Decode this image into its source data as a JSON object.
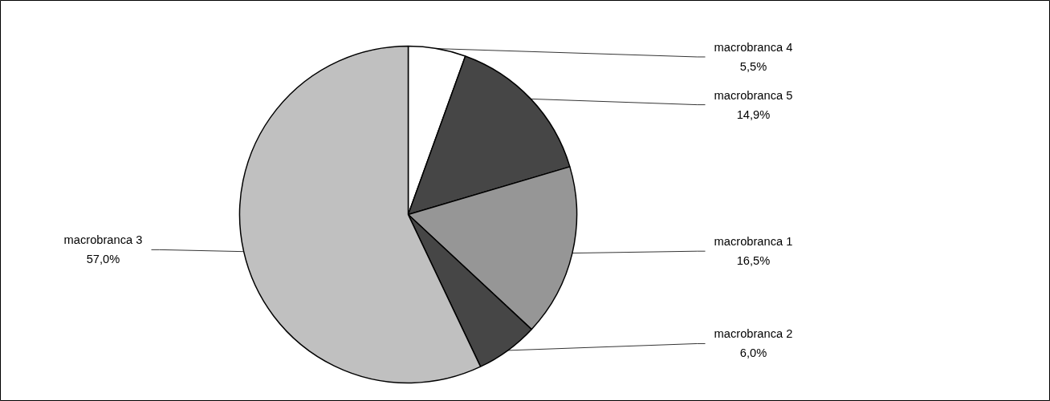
{
  "chart_data": {
    "type": "pie",
    "categories": [
      "macrobranca 4",
      "macrobranca 5",
      "macrobranca 1",
      "macrobranca 2",
      "macrobranca 3"
    ],
    "values": [
      5.5,
      14.9,
      16.5,
      6.0,
      57.0
    ],
    "value_labels": [
      "5,5%",
      "14,9%",
      "16,5%",
      "6,0%",
      "57,0%"
    ],
    "colors": [
      "#ffffff",
      "#464646",
      "#969696",
      "#464646",
      "#c0c0c0"
    ]
  }
}
